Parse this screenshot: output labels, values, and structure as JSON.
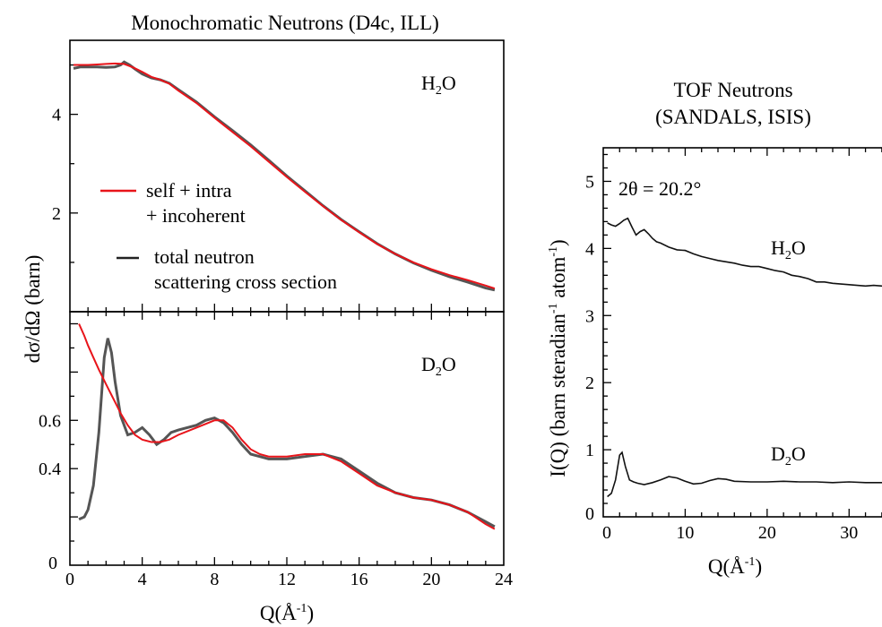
{
  "colors": {
    "model": "#e8141a",
    "data": "#555555",
    "axis": "#000000"
  },
  "chart_data": [
    {
      "type": "line",
      "panel": "top-left",
      "title": "Monochromatic Neutrons (D4c, ILL)",
      "sample": {
        "base": "H",
        "sub": "2",
        "rest": "O"
      },
      "xlim": [
        0,
        24
      ],
      "ylim": [
        0,
        5.5
      ],
      "yticks": [
        2,
        4
      ],
      "legend": [
        {
          "lines": [
            "self + intra",
            "+ incoherent"
          ],
          "color": "#e8141a"
        },
        {
          "lines": [
            "total neutron",
            "scattering cross section"
          ],
          "color": "#222222"
        }
      ],
      "series": [
        {
          "key": "measured",
          "x": [
            0.2,
            0.6,
            1.0,
            1.5,
            2.0,
            2.5,
            2.8,
            3.0,
            3.3,
            3.6,
            4.0,
            4.5,
            5.0,
            5.5,
            6,
            7,
            8,
            9,
            10,
            11,
            12,
            13,
            14,
            15,
            16,
            17,
            18,
            19,
            20,
            21,
            22,
            23,
            23.5
          ],
          "y": [
            4.93,
            4.96,
            4.96,
            4.96,
            4.95,
            4.96,
            5.0,
            5.06,
            5.0,
            4.92,
            4.82,
            4.74,
            4.7,
            4.63,
            4.5,
            4.25,
            3.95,
            3.67,
            3.38,
            3.07,
            2.75,
            2.45,
            2.15,
            1.87,
            1.62,
            1.38,
            1.17,
            0.99,
            0.84,
            0.71,
            0.6,
            0.48,
            0.44
          ]
        },
        {
          "key": "model",
          "x": [
            0.2,
            0.6,
            1.0,
            1.5,
            2.0,
            2.5,
            3.0,
            3.5,
            4.0,
            4.5,
            5.0,
            5.5,
            6,
            7,
            8,
            9,
            10,
            11,
            12,
            13,
            14,
            15,
            16,
            17,
            18,
            19,
            20,
            21,
            22,
            23,
            23.5
          ],
          "y": [
            5.0,
            5.0,
            5.0,
            5.01,
            5.02,
            5.03,
            5.02,
            4.95,
            4.86,
            4.76,
            4.7,
            4.62,
            4.48,
            4.23,
            3.93,
            3.64,
            3.35,
            3.04,
            2.73,
            2.43,
            2.14,
            1.86,
            1.61,
            1.37,
            1.17,
            1.0,
            0.86,
            0.74,
            0.64,
            0.53,
            0.47
          ]
        }
      ]
    },
    {
      "type": "line",
      "panel": "bottom-left",
      "sample": {
        "base": "D",
        "sub": "2",
        "rest": "O"
      },
      "xlabel": "Q(Å",
      "xlabel_sup": "-1",
      "xlabel_end": ")",
      "ylabel": "dσ/dΩ (barn)",
      "xlim": [
        0,
        24
      ],
      "ylim": [
        0,
        1.05
      ],
      "xticks": [
        0,
        4,
        8,
        12,
        16,
        20,
        24
      ],
      "yticks": [
        0.4,
        0.6
      ],
      "yzero_label": "0",
      "series": [
        {
          "key": "measured",
          "x": [
            0.5,
            0.8,
            1.0,
            1.3,
            1.6,
            1.9,
            2.1,
            2.3,
            2.5,
            2.8,
            3.2,
            3.6,
            4.0,
            4.4,
            4.8,
            5.2,
            5.6,
            6.0,
            7.0,
            7.5,
            8.0,
            8.5,
            9.0,
            9.5,
            10.0,
            10.5,
            11.0,
            12.0,
            13.0,
            14.0,
            15.0,
            16.0,
            17.0,
            18.0,
            19.0,
            20.0,
            21.0,
            22.0,
            23.0,
            23.5
          ],
          "y": [
            0.19,
            0.2,
            0.23,
            0.33,
            0.55,
            0.86,
            0.94,
            0.88,
            0.76,
            0.62,
            0.54,
            0.55,
            0.57,
            0.54,
            0.5,
            0.52,
            0.55,
            0.56,
            0.58,
            0.6,
            0.61,
            0.59,
            0.55,
            0.5,
            0.46,
            0.45,
            0.44,
            0.44,
            0.45,
            0.46,
            0.44,
            0.39,
            0.34,
            0.3,
            0.28,
            0.27,
            0.25,
            0.22,
            0.18,
            0.16
          ]
        },
        {
          "key": "model",
          "x": [
            0.5,
            0.8,
            1.0,
            1.3,
            1.6,
            2.0,
            2.4,
            2.8,
            3.2,
            3.6,
            4.0,
            4.5,
            5.0,
            5.5,
            6.0,
            7.0,
            8.0,
            8.5,
            9.0,
            9.5,
            10.0,
            10.5,
            11.0,
            12.0,
            13.0,
            14.0,
            15.0,
            16.0,
            17.0,
            18.0,
            19.0,
            20.0,
            21.0,
            22.0,
            23.0,
            23.5
          ],
          "y": [
            1.0,
            0.95,
            0.91,
            0.86,
            0.81,
            0.75,
            0.69,
            0.63,
            0.58,
            0.54,
            0.52,
            0.51,
            0.51,
            0.52,
            0.54,
            0.57,
            0.6,
            0.6,
            0.57,
            0.52,
            0.48,
            0.46,
            0.45,
            0.45,
            0.46,
            0.46,
            0.43,
            0.38,
            0.33,
            0.3,
            0.28,
            0.27,
            0.25,
            0.22,
            0.17,
            0.15
          ]
        }
      ]
    },
    {
      "type": "line",
      "panel": "right",
      "title_lines": [
        "TOF Neutrons",
        "(SANDALS, ISIS)"
      ],
      "annotation": "2θ = 20.2°",
      "xlabel": "Q(Å",
      "xlabel_sup": "-1",
      "xlabel_end": ")",
      "ylabel": "I(Q) (barn steradian",
      "ylabel_sup1": "-1",
      "ylabel_mid": " atom",
      "ylabel_sup2": "-1",
      "ylabel_end": ")",
      "xlim": [
        0,
        35
      ],
      "ylim": [
        0,
        5.5
      ],
      "xticks": [
        0,
        10,
        20,
        30
      ],
      "xtick_labels": [
        "0",
        "10",
        "20",
        "30"
      ],
      "yticks": [
        0,
        1,
        2,
        3,
        4,
        5
      ],
      "ytick_labels": [
        "0",
        "1",
        "2",
        "3",
        "4",
        "5"
      ],
      "series": [
        {
          "key": "H2O",
          "label": {
            "base": "H",
            "sub": "2",
            "rest": "O"
          },
          "x": [
            0.5,
            1.0,
            1.5,
            2.0,
            2.5,
            3.0,
            3.5,
            4.0,
            4.5,
            5.0,
            5.5,
            6.0,
            6.5,
            7.0,
            8.0,
            9.0,
            10.0,
            11.0,
            12.0,
            13.0,
            14.0,
            15.0,
            16.0,
            17.0,
            18.0,
            19.0,
            20.0,
            21.0,
            22.0,
            23.0,
            24.0,
            25.0,
            26.0,
            27.0,
            28.0,
            29.0,
            30.0,
            31.0,
            32.0,
            33.0,
            34.0,
            35.0
          ],
          "y": [
            4.38,
            4.35,
            4.33,
            4.37,
            4.42,
            4.45,
            4.32,
            4.2,
            4.25,
            4.28,
            4.22,
            4.15,
            4.1,
            4.08,
            4.02,
            3.98,
            3.97,
            3.92,
            3.88,
            3.85,
            3.82,
            3.8,
            3.78,
            3.75,
            3.73,
            3.73,
            3.7,
            3.67,
            3.65,
            3.6,
            3.58,
            3.55,
            3.5,
            3.5,
            3.48,
            3.47,
            3.46,
            3.45,
            3.44,
            3.45,
            3.44,
            3.45
          ]
        },
        {
          "key": "D2O",
          "label": {
            "base": "D",
            "sub": "2",
            "rest": "O"
          },
          "x": [
            0.5,
            1.0,
            1.5,
            2.0,
            2.3,
            2.7,
            3.2,
            3.7,
            4.2,
            5.0,
            6.0,
            7.0,
            8.0,
            9.0,
            10.0,
            11.0,
            12.0,
            13.0,
            14.0,
            15.0,
            16.0,
            18.0,
            20.0,
            22.0,
            24.0,
            26.0,
            28.0,
            30.0,
            32.0,
            34.0,
            35.0
          ],
          "y": [
            0.3,
            0.35,
            0.55,
            0.92,
            0.96,
            0.75,
            0.55,
            0.52,
            0.5,
            0.48,
            0.51,
            0.55,
            0.6,
            0.58,
            0.53,
            0.49,
            0.5,
            0.54,
            0.57,
            0.56,
            0.53,
            0.52,
            0.52,
            0.53,
            0.52,
            0.52,
            0.51,
            0.52,
            0.51,
            0.51,
            0.51
          ]
        }
      ]
    }
  ]
}
